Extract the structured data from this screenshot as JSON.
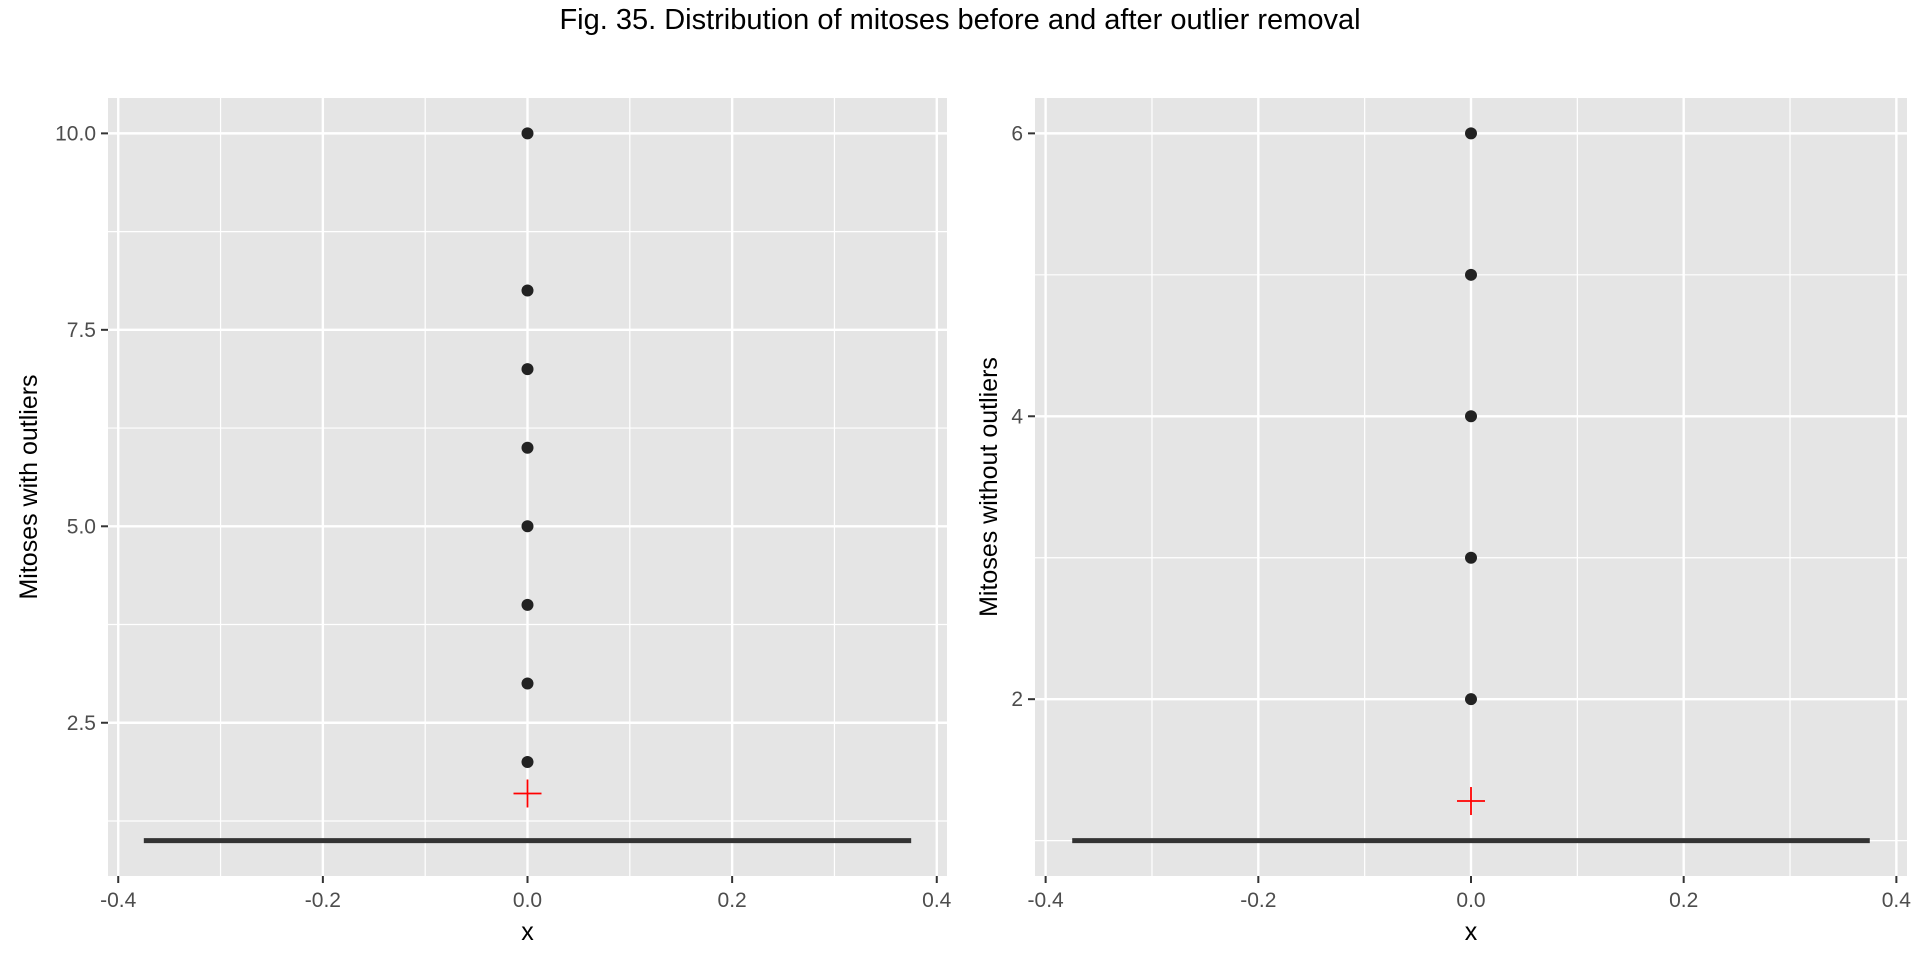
{
  "figure": {
    "title": "Fig. 35. Distribution of mitoses before and after outlier removal"
  },
  "chart_data": [
    {
      "type": "scatter",
      "title": "",
      "xlabel": "x",
      "ylabel": "Mitoses with outliers",
      "xlim": [
        -0.41,
        0.41
      ],
      "ylim": [
        0.55,
        10.45
      ],
      "x_ticks": [
        -0.4,
        -0.2,
        0.0,
        0.2,
        0.4
      ],
      "x_tick_labels": [
        "-0.4",
        "-0.2",
        "0.0",
        "0.2",
        "0.4"
      ],
      "y_ticks": [
        2.5,
        5.0,
        7.5,
        10.0
      ],
      "y_tick_labels": [
        "2.5",
        "5.0",
        "7.5",
        "10.0"
      ],
      "grid": true,
      "points": {
        "x": [
          0,
          0,
          0,
          0,
          0,
          0,
          0,
          0
        ],
        "y": [
          2,
          3,
          4,
          5,
          6,
          7,
          8,
          10
        ]
      },
      "mean_marker": {
        "x": 0,
        "y": 1.6,
        "color": "#ff0000",
        "shape": "cross"
      },
      "horizontal_segment": {
        "x_start": -0.375,
        "x_end": 0.375,
        "y": 1.0,
        "color": "#333333"
      }
    },
    {
      "type": "scatter",
      "title": "",
      "xlabel": "x",
      "ylabel": "Mitoses without outliers",
      "xlim": [
        -0.41,
        0.41
      ],
      "ylim": [
        0.75,
        6.25
      ],
      "x_ticks": [
        -0.4,
        -0.2,
        0.0,
        0.2,
        0.4
      ],
      "x_tick_labels": [
        "-0.4",
        "-0.2",
        "0.0",
        "0.2",
        "0.4"
      ],
      "y_ticks": [
        2,
        4,
        6
      ],
      "y_tick_labels": [
        "2",
        "4",
        "6"
      ],
      "grid": true,
      "points": {
        "x": [
          0,
          0,
          0,
          0,
          0
        ],
        "y": [
          2,
          3,
          4,
          5,
          6
        ]
      },
      "mean_marker": {
        "x": 0,
        "y": 1.28,
        "color": "#ff0000",
        "shape": "cross"
      },
      "horizontal_segment": {
        "x_start": -0.375,
        "x_end": 0.375,
        "y": 1.0,
        "color": "#333333"
      }
    }
  ],
  "colors": {
    "panel_background": "#e5e5e5",
    "grid": "#ffffff",
    "point": "#222222",
    "axis_text": "#4d4d4d"
  }
}
